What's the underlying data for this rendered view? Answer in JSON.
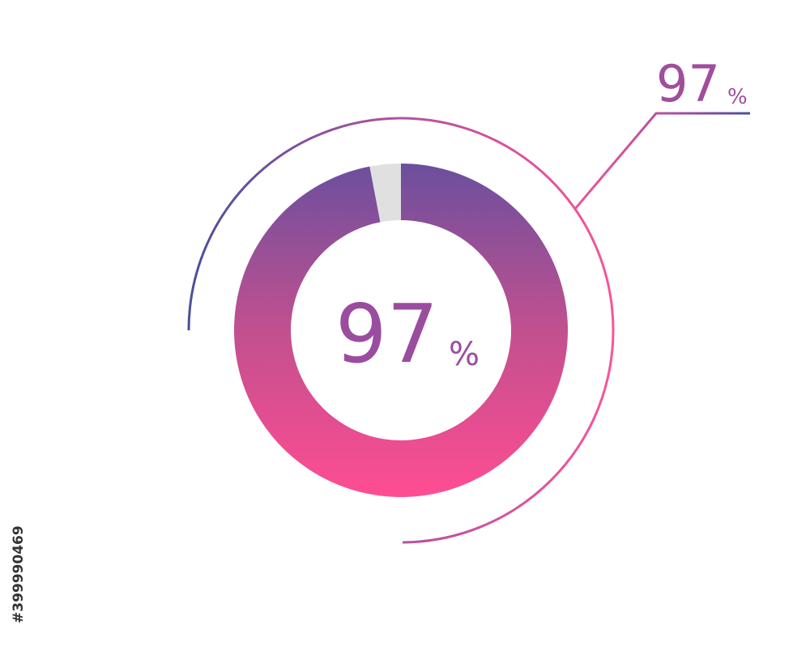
{
  "chart_data": {
    "type": "donut",
    "values": [
      97,
      3
    ],
    "unit": "%",
    "colors": [
      "url(#donutGrad)",
      "#e0e0e0"
    ]
  },
  "stock_id": "#399990469"
}
